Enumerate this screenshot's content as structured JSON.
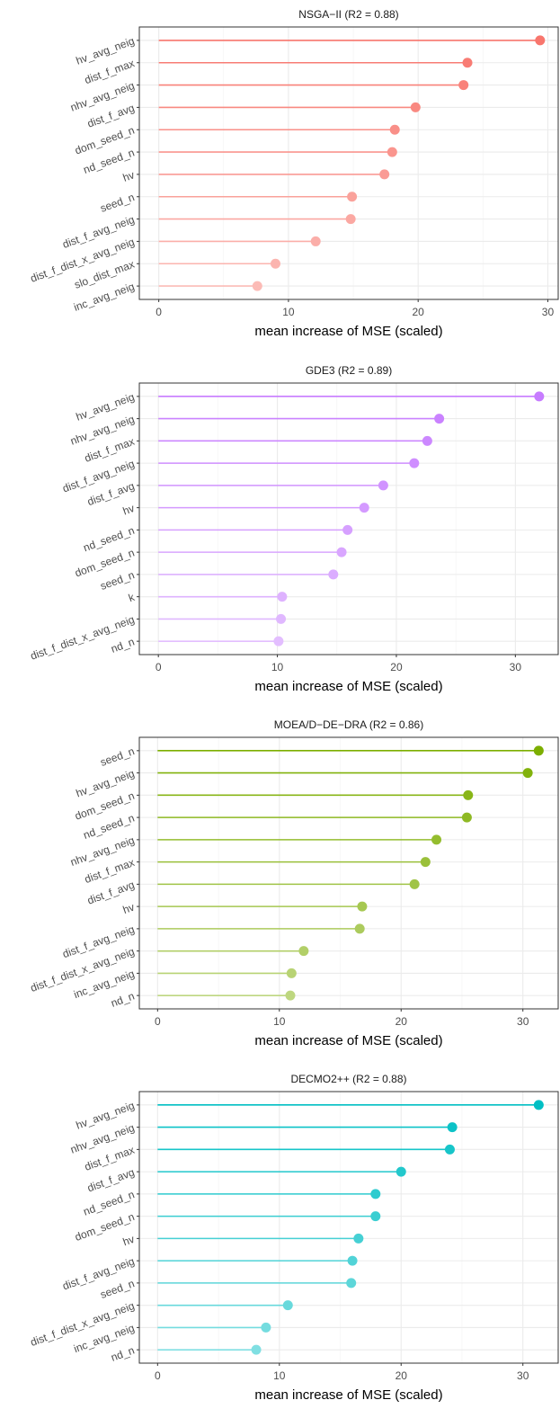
{
  "chart_data": [
    {
      "type": "lollipop",
      "title": "NSGA−II (R2 = 0.88)",
      "xlabel": "mean increase of MSE (scaled)",
      "ylabel": "",
      "xlim": [
        -1.5,
        30.8
      ],
      "xticks": [
        0,
        10,
        20,
        30
      ],
      "grid": true,
      "color": "#F8766D",
      "categories": [
        "hv_avg_neig",
        "dist_f_max",
        "nhv_avg_neig",
        "dist_f_avg",
        "dom_seed_n",
        "nd_seed_n",
        "hv",
        "seed_n",
        "dist_f_avg_neig",
        "dist_f_dist_x_avg_neig",
        "slo_dist_max",
        "inc_avg_neig"
      ],
      "values": [
        29.4,
        23.8,
        23.5,
        19.8,
        18.2,
        18.0,
        17.4,
        14.9,
        14.8,
        12.1,
        9.0,
        7.6
      ]
    },
    {
      "type": "lollipop",
      "title": "GDE3 (R2 = 0.89)",
      "xlabel": "mean increase of MSE (scaled)",
      "ylabel": "",
      "xlim": [
        -1.6,
        33.6
      ],
      "xticks": [
        0,
        10,
        20,
        30
      ],
      "grid": true,
      "color": "#C77CFF",
      "categories": [
        "hv_avg_neig",
        "nhv_avg_neig",
        "dist_f_max",
        "dist_f_avg_neig",
        "dist_f_avg",
        "hv",
        "nd_seed_n",
        "dom_seed_n",
        "seed_n",
        "k",
        "dist_f_dist_x_avg_neig",
        "nd_n"
      ],
      "values": [
        32.0,
        23.6,
        22.6,
        21.5,
        18.9,
        17.3,
        15.9,
        15.4,
        14.7,
        10.4,
        10.3,
        10.1
      ]
    },
    {
      "type": "lollipop",
      "title": "MOEA/D−DE−DRA (R2 = 0.86)",
      "xlabel": "mean increase of MSE (scaled)",
      "ylabel": "",
      "xlim": [
        -1.5,
        32.9
      ],
      "xticks": [
        0,
        10,
        20,
        30
      ],
      "grid": true,
      "color": "#7CAE00",
      "categories": [
        "seed_n",
        "hv_avg_neig",
        "dom_seed_n",
        "nd_seed_n",
        "nhv_avg_neig",
        "dist_f_max",
        "dist_f_avg",
        "hv",
        "dist_f_avg_neig",
        "dist_f_dist_x_avg_neig",
        "inc_avg_neig",
        "nd_n"
      ],
      "values": [
        31.3,
        30.4,
        25.5,
        25.4,
        22.9,
        22.0,
        21.1,
        16.8,
        16.6,
        12.0,
        11.0,
        10.9
      ]
    },
    {
      "type": "lollipop",
      "title": "DECMO2++ (R2 = 0.88)",
      "xlabel": "mean increase of MSE (scaled)",
      "ylabel": "",
      "xlim": [
        -1.5,
        32.9
      ],
      "xticks": [
        0,
        10,
        20,
        30
      ],
      "grid": true,
      "color": "#00BFC4",
      "categories": [
        "hv_avg_neig",
        "nhv_avg_neig",
        "dist_f_max",
        "dist_f_avg",
        "nd_seed_n",
        "dom_seed_n",
        "hv",
        "dist_f_avg_neig",
        "seed_n",
        "dist_f_dist_x_avg_neig",
        "inc_avg_neig",
        "nd_n"
      ],
      "values": [
        31.3,
        24.2,
        24.0,
        20.0,
        17.9,
        17.9,
        16.5,
        16.0,
        15.9,
        10.7,
        8.9,
        8.1
      ]
    }
  ]
}
